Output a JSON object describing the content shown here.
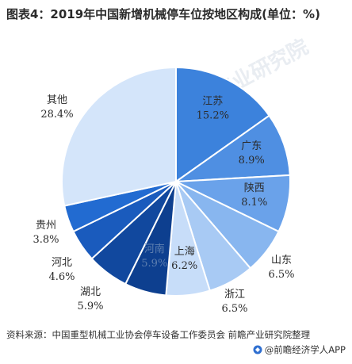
{
  "title": "图表4：2019年中国新增机械停车位按地区构成(单位：%)",
  "source": "资料来源：中国重型机械工业协会停车设备工作委员会 前瞻产业研究院整理",
  "brand": "@前瞻经济学人APP",
  "watermark": "前瞻产业研究院",
  "chart_data": {
    "type": "pie",
    "title": "图表4：2019年中国新增机械停车位按地区构成(单位：%)",
    "unit": "%",
    "slices": [
      {
        "label": "江苏",
        "value": 15.2,
        "display": "15.2%",
        "color": "#3c82dc"
      },
      {
        "label": "广东",
        "value": 8.9,
        "display": "8.9%",
        "color": "#4f8fe2"
      },
      {
        "label": "陕西",
        "value": 8.1,
        "display": "8.1%",
        "color": "#6aa2ea"
      },
      {
        "label": "山东",
        "value": 6.5,
        "display": "6.5%",
        "color": "#88b6ef"
      },
      {
        "label": "浙江",
        "value": 6.5,
        "display": "6.5%",
        "color": "#a8caf4"
      },
      {
        "label": "上海",
        "value": 6.2,
        "display": "6.2%",
        "color": "#c7ddf9"
      },
      {
        "label": "河南",
        "value": 5.9,
        "display": "5.9%",
        "color": "#0d3f8f"
      },
      {
        "label": "湖北",
        "value": 5.9,
        "display": "5.9%",
        "color": "#11489e"
      },
      {
        "label": "河北",
        "value": 4.6,
        "display": "4.6%",
        "color": "#1a5bbd"
      },
      {
        "label": "贵州",
        "value": 3.8,
        "display": "3.8%",
        "color": "#226bd1"
      },
      {
        "label": "其他",
        "value": 28.4,
        "display": "28.4%",
        "color": "#d4e5fa"
      }
    ]
  }
}
